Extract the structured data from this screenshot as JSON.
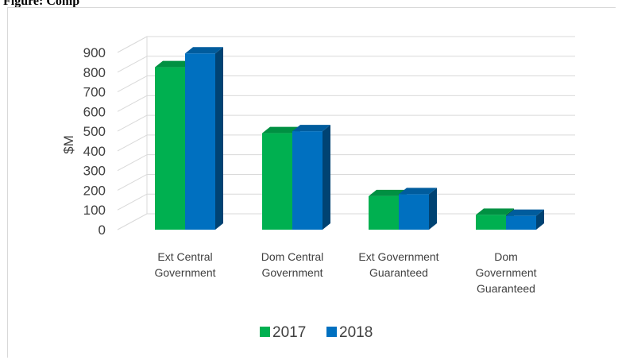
{
  "heading": {
    "visible_text": "Figure: Comp"
  },
  "chart_data": {
    "type": "bar",
    "title": "",
    "xlabel": "",
    "ylabel": "$M",
    "ylim": [
      0,
      900
    ],
    "yticks": [
      0,
      100,
      200,
      300,
      400,
      500,
      600,
      700,
      800,
      900
    ],
    "categories": [
      [
        "Ext Central",
        "Government"
      ],
      [
        "Dom Central",
        "Government"
      ],
      [
        "Ext Government",
        "Guaranteed"
      ],
      [
        "Dom",
        "Government",
        "Guaranteed"
      ]
    ],
    "series": [
      {
        "name": "2017",
        "values": [
          825,
          490,
          170,
          75
        ],
        "color": "#00b050"
      },
      {
        "name": "2018",
        "values": [
          895,
          500,
          180,
          70
        ],
        "color": "#0070c0"
      }
    ],
    "grid": true,
    "legend": "bottom",
    "style": "3d-clustered-column"
  }
}
